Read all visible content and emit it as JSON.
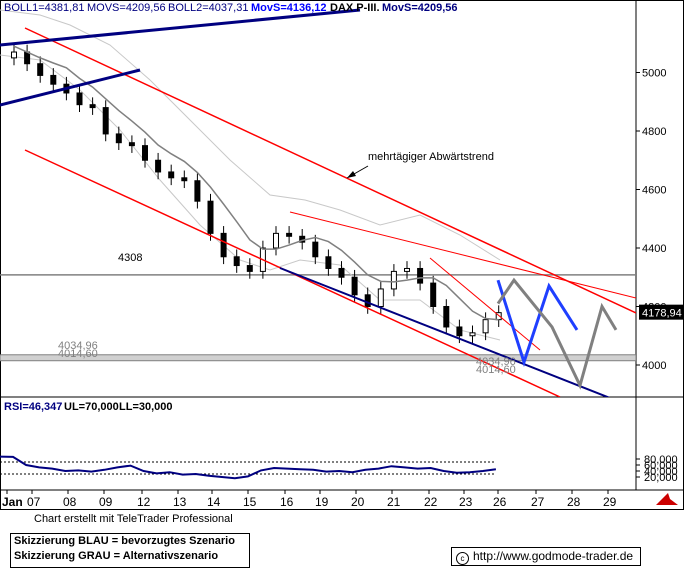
{
  "header": {
    "boll1": "BOLL1=4381,81",
    "movs1": "MOVS=4209,56",
    "boll2": "BOLL2=4037,31",
    "movs_label": "MovS=4136,12",
    "title": "DAX P-III.",
    "movs2": "MovS=4209,56"
  },
  "colors": {
    "trend_red": "#ff0000",
    "trend_blue": "#000080",
    "scenario_blue": "#1f3fff",
    "scenario_gray": "#808080",
    "moving_average": "#808080",
    "bollinger": "#c8c8c8",
    "candles": "#000000",
    "rsi_line": "#000080",
    "label_blue": "#000080",
    "label_cyan": "#0000ff"
  },
  "chart_data": [
    {
      "type": "candlestick",
      "instrument": "DAX",
      "ylim": [
        3900,
        5180
      ],
      "y_ticks": [
        "4000",
        "4200",
        "4400",
        "4600",
        "4800",
        "5000"
      ],
      "x_ticks": [
        "Jan",
        "07",
        "08",
        "09",
        "12",
        "13",
        "14",
        "15",
        "16",
        "19",
        "20",
        "21",
        "22",
        "23",
        "26",
        "27",
        "28",
        "29"
      ],
      "close": [
        5070,
        5030,
        4990,
        4960,
        4930,
        4890,
        4880,
        4790,
        4760,
        4750,
        4700,
        4660,
        4640,
        4630,
        4560,
        4450,
        4370,
        4340,
        4320,
        4400,
        4450,
        4440,
        4420,
        4370,
        4330,
        4300,
        4240,
        4200,
        4260,
        4320,
        4330,
        4280,
        4200,
        4130,
        4100,
        4110,
        4155,
        4178.94
      ],
      "last_value": "4178,94",
      "levels": [
        {
          "label": "4308",
          "value": 4308
        },
        {
          "label": "4034,96",
          "value": 4034.96
        },
        {
          "label": "4014,60",
          "value": 4014.6
        }
      ],
      "right_labels": [
        "4034,96",
        "4014,60"
      ],
      "annotation": "mehrtägiger Abwärtstrend",
      "scenarios": {
        "blue": [
          4290,
          4010,
          4270,
          4120
        ],
        "gray": [
          4210,
          4290,
          4130,
          3930,
          4200,
          4120
        ]
      }
    },
    {
      "type": "line",
      "name": "RSI",
      "label": "RSI=46,347",
      "ul_label": "UL=70,000",
      "ll_label": "LL=30,000",
      "ylim": [
        0,
        100
      ],
      "y_ticks": [
        "20,000",
        "40,000",
        "60,000",
        "80,000"
      ],
      "upper_level": 70,
      "lower_level": 30,
      "values": [
        88,
        87,
        60,
        52,
        48,
        40,
        42,
        38,
        44,
        52,
        58,
        40,
        32,
        36,
        28,
        30,
        24,
        20,
        16,
        22,
        42,
        50,
        48,
        46,
        44,
        38,
        40,
        36,
        44,
        48,
        56,
        52,
        48,
        50,
        40,
        34,
        36,
        40,
        46
      ]
    }
  ],
  "credit": "Chart erstellt mit TeleTrader Professional",
  "legend": {
    "line1": "Skizzierung BLAU = bevorzugtes Szenario",
    "line2": "Skizzierung GRAU = Alternativszenario"
  },
  "website": {
    "symbol": "c",
    "url": "http://www.godmode-trader.de"
  }
}
